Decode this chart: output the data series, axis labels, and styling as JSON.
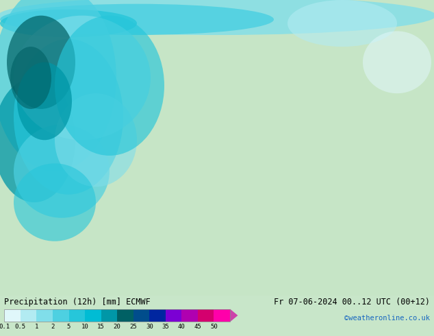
{
  "title_left": "Precipitation (12h) [mm] ECMWF",
  "title_right": "Fr 07-06-2024 00..12 UTC (00+12)",
  "credit": "©weatheronline.co.uk",
  "colorbar_values": [
    0.1,
    0.5,
    1,
    2,
    5,
    10,
    15,
    20,
    25,
    30,
    35,
    40,
    45,
    50
  ],
  "colorbar_colors": [
    "#e0f7fa",
    "#b2ebf2",
    "#80deea",
    "#4dd0e1",
    "#26c6da",
    "#00bcd4",
    "#0097a7",
    "#006064",
    "#004d8c",
    "#0026a0",
    "#7b00d4",
    "#b000b0",
    "#d4006e",
    "#ff00aa"
  ],
  "map_bg_color": "#c8e6c9",
  "fig_width": 6.34,
  "fig_height": 4.9,
  "dpi": 100,
  "bottom_bar_color": "#f5f5f5",
  "text_color": "#000000",
  "credit_color": "#1565c0"
}
